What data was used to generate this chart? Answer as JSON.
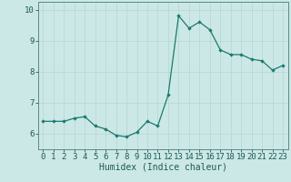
{
  "x": [
    0,
    1,
    2,
    3,
    4,
    5,
    6,
    7,
    8,
    9,
    10,
    11,
    12,
    13,
    14,
    15,
    16,
    17,
    18,
    19,
    20,
    21,
    22,
    23
  ],
  "y": [
    6.4,
    6.4,
    6.4,
    6.5,
    6.55,
    6.25,
    6.15,
    5.95,
    5.9,
    6.05,
    6.4,
    6.25,
    7.25,
    9.8,
    9.4,
    9.6,
    9.35,
    8.7,
    8.55,
    8.55,
    8.4,
    8.35,
    8.05,
    8.2
  ],
  "line_color": "#1a7a6e",
  "marker": "D",
  "marker_size": 1.8,
  "xlabel": "Humidex (Indice chaleur)",
  "ylim": [
    5.5,
    10.25
  ],
  "xlim": [
    -0.5,
    23.5
  ],
  "yticks": [
    6,
    7,
    8,
    9,
    10
  ],
  "xticks": [
    0,
    1,
    2,
    3,
    4,
    5,
    6,
    7,
    8,
    9,
    10,
    11,
    12,
    13,
    14,
    15,
    16,
    17,
    18,
    19,
    20,
    21,
    22,
    23
  ],
  "bg_color": "#cce8e6",
  "grid_color": "#b8d8d6",
  "spine_color": "#5a8a85",
  "tick_color": "#1a5a55",
  "xlabel_fontsize": 7,
  "tick_fontsize": 6.5
}
